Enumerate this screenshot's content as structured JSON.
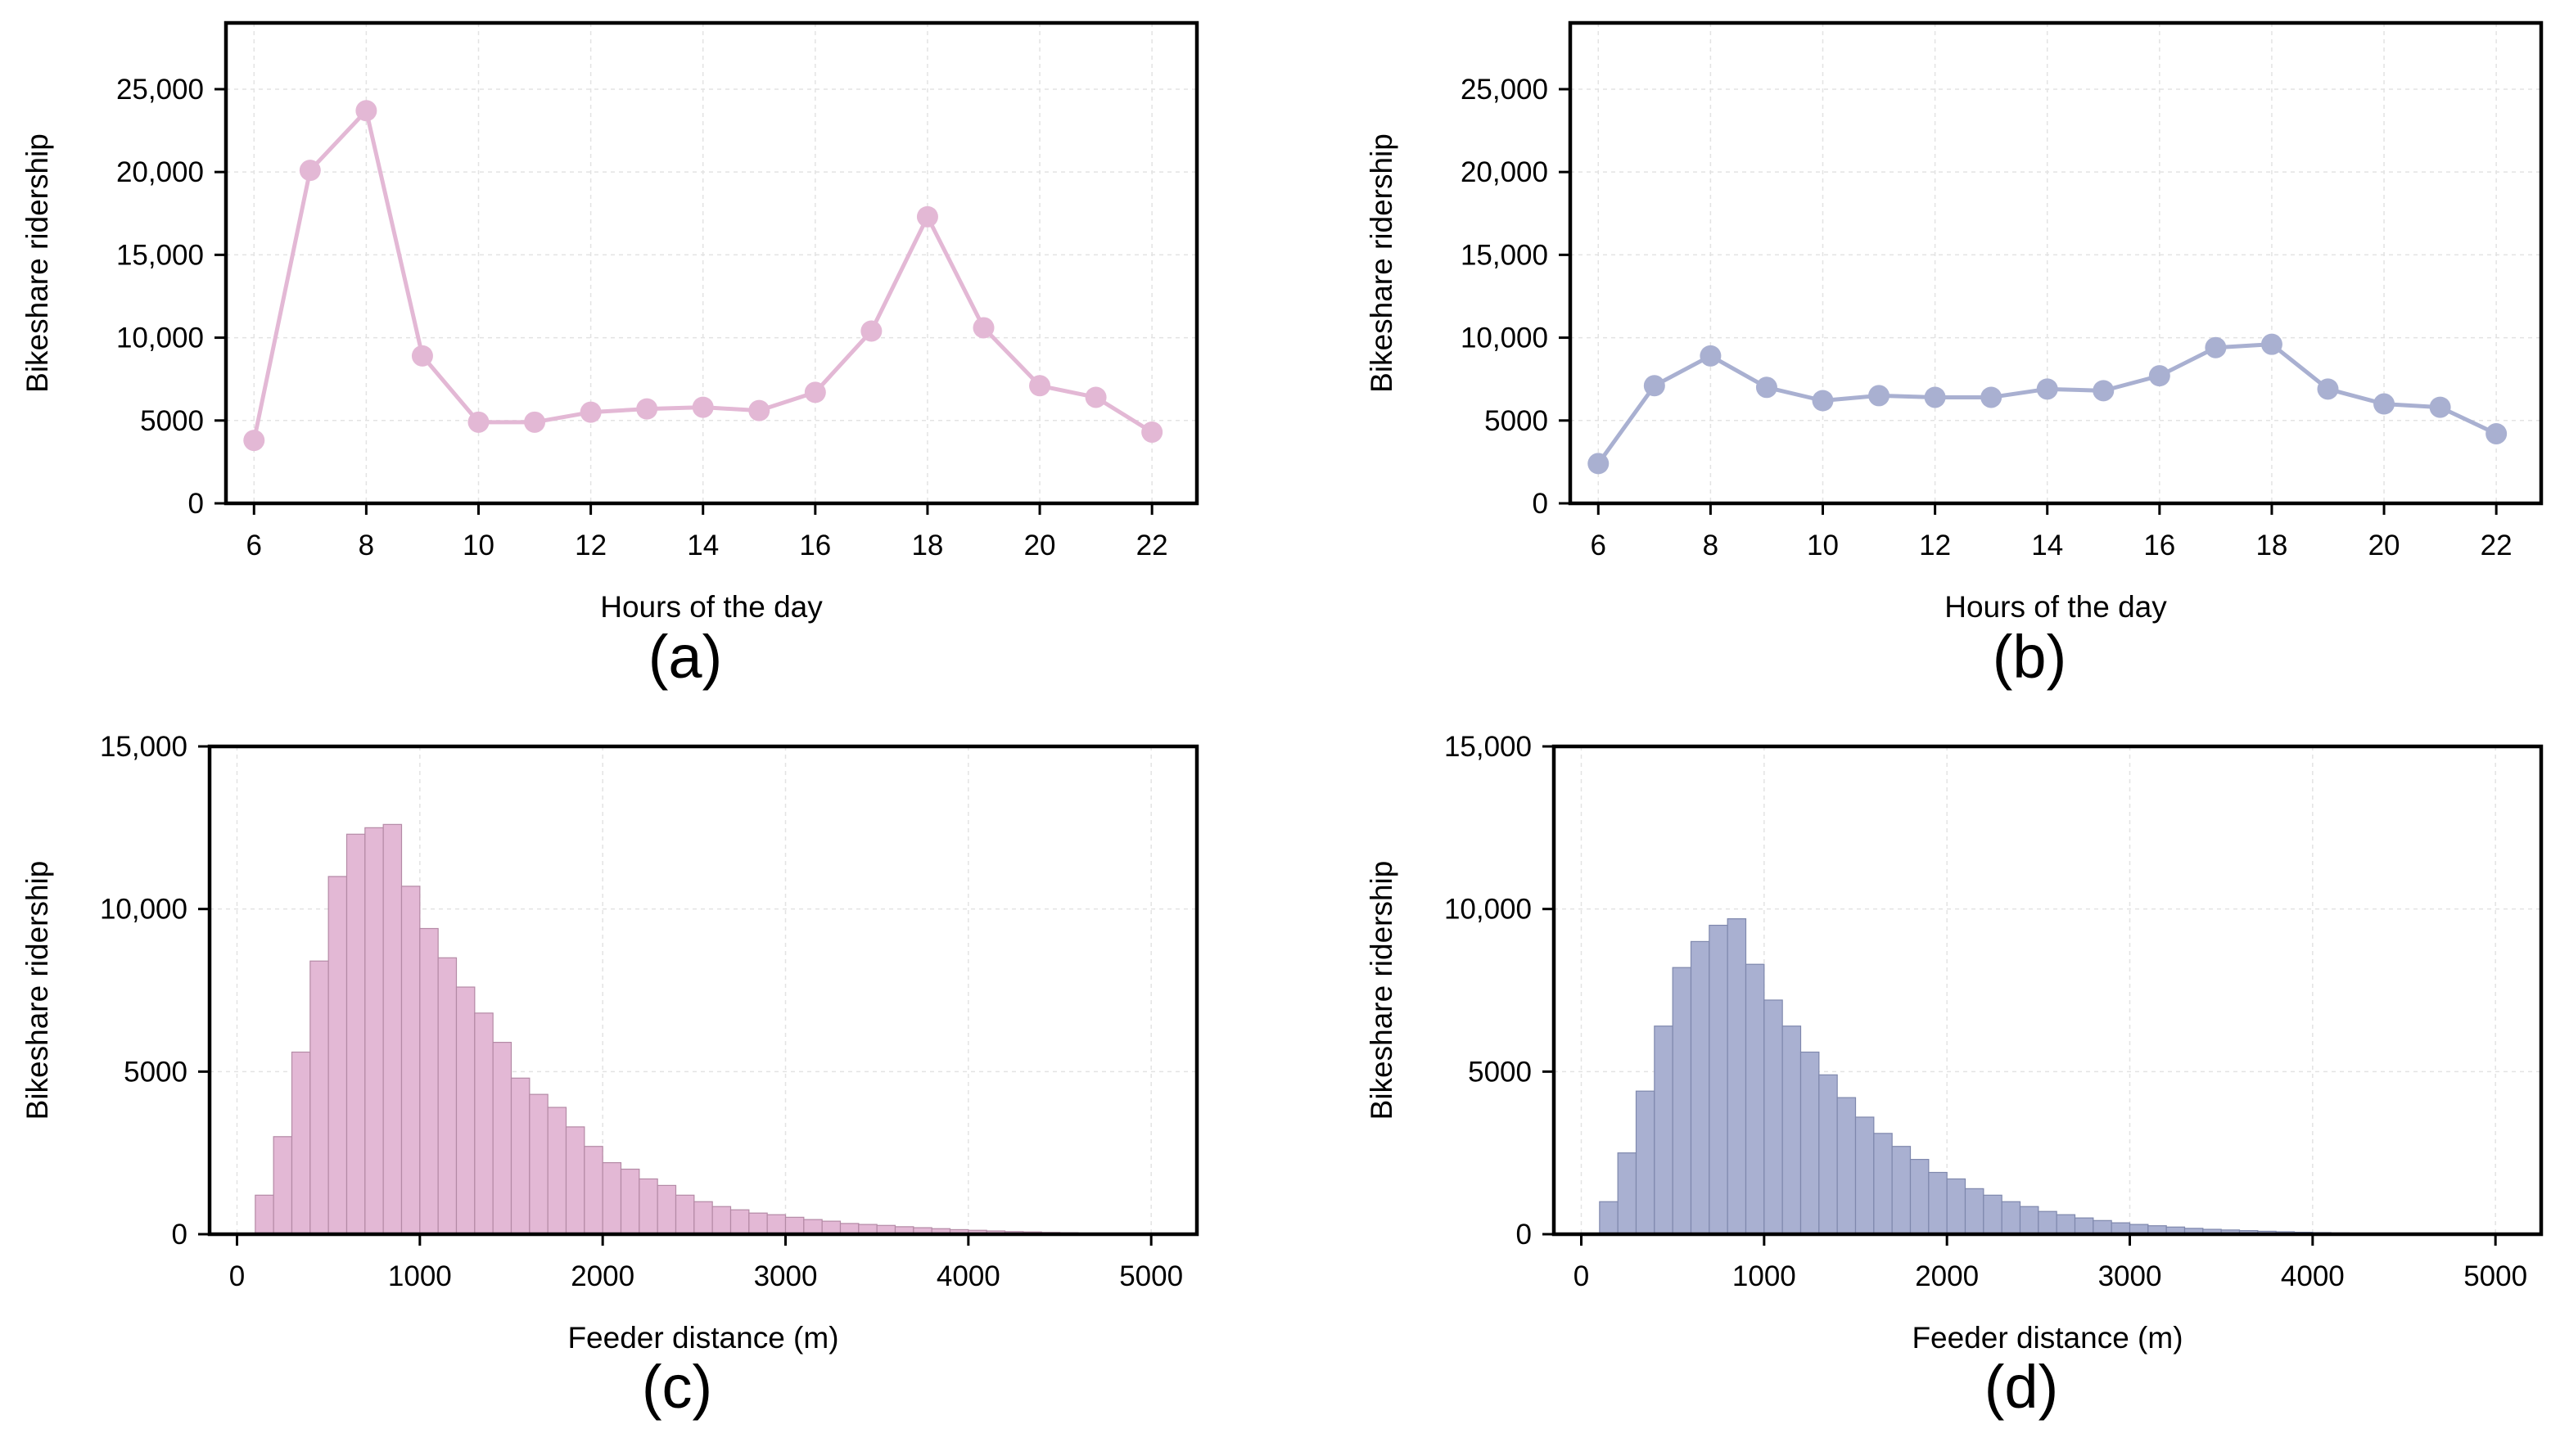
{
  "colors": {
    "pink": "#e3b8d5",
    "pink_edge": "#b48aa6",
    "blue": "#a9b0d1",
    "blue_edge": "#7f88ad"
  },
  "chart_data": [
    {
      "type": "line",
      "panel": "(a)",
      "xlabel": "Hours of the day",
      "ylabel": "Bikeshare ridership",
      "xlim": [
        5.5,
        22.8
      ],
      "ylim": [
        0,
        25000
      ],
      "xticks": [
        6,
        8,
        10,
        12,
        14,
        16,
        18,
        20,
        22
      ],
      "yticks": [
        0,
        5000,
        10000,
        15000,
        20000,
        25000
      ],
      "ytick_labels": [
        "0",
        "5000",
        "10,000",
        "15,000",
        "20,000",
        "25,000"
      ],
      "grid": true,
      "color": "#e3b8d5",
      "x": [
        6,
        7,
        8,
        9,
        10,
        11,
        12,
        13,
        14,
        15,
        16,
        17,
        18,
        19,
        20,
        21,
        22
      ],
      "y": [
        3800,
        20100,
        23700,
        8900,
        4900,
        4900,
        5500,
        5700,
        5800,
        5600,
        6700,
        10400,
        17300,
        10600,
        7100,
        6400,
        4300
      ]
    },
    {
      "type": "line",
      "panel": "(b)",
      "xlabel": "Hours of the day",
      "ylabel": "Bikeshare ridership",
      "xlim": [
        5.5,
        22.8
      ],
      "ylim": [
        0,
        25000
      ],
      "xticks": [
        6,
        8,
        10,
        12,
        14,
        16,
        18,
        20,
        22
      ],
      "yticks": [
        0,
        5000,
        10000,
        15000,
        20000,
        25000
      ],
      "ytick_labels": [
        "0",
        "5000",
        "10,000",
        "15,000",
        "20,000",
        "25,000"
      ],
      "grid": true,
      "color": "#a9b0d1",
      "x": [
        6,
        7,
        8,
        9,
        10,
        11,
        12,
        13,
        14,
        15,
        16,
        17,
        18,
        19,
        20,
        21,
        22
      ],
      "y": [
        2400,
        7100,
        8900,
        7000,
        6200,
        6500,
        6400,
        6400,
        6900,
        6800,
        7700,
        9400,
        9600,
        6900,
        6000,
        5800,
        4200
      ]
    },
    {
      "type": "bar",
      "panel": "(c)",
      "xlabel": "Feeder distance (m)",
      "ylabel": "Bikeshare ridership",
      "xlim": [
        -150,
        5250
      ],
      "ylim": [
        0,
        15000
      ],
      "xticks": [
        0,
        1000,
        2000,
        3000,
        4000,
        5000
      ],
      "yticks": [
        0,
        5000,
        10000,
        15000
      ],
      "ytick_labels": [
        "0",
        "5000",
        "10,000",
        "15,000"
      ],
      "grid": true,
      "color": "#e3b8d5",
      "bin_start": 100,
      "bin_width": 100,
      "values": [
        1200,
        3000,
        5600,
        8400,
        11000,
        12300,
        12500,
        12600,
        10700,
        9400,
        8500,
        7600,
        6800,
        5900,
        4800,
        4300,
        3900,
        3300,
        2700,
        2200,
        2000,
        1700,
        1500,
        1200,
        1000,
        850,
        750,
        650,
        600,
        520,
        450,
        400,
        330,
        300,
        270,
        230,
        200,
        170,
        140,
        120,
        100,
        80,
        70,
        55,
        45,
        35,
        30,
        20,
        15,
        10
      ]
    },
    {
      "type": "bar",
      "panel": "(d)",
      "xlabel": "Feeder distance (m)",
      "ylabel": "Bikeshare ridership",
      "xlim": [
        -150,
        5250
      ],
      "ylim": [
        0,
        15000
      ],
      "xticks": [
        0,
        1000,
        2000,
        3000,
        4000,
        5000
      ],
      "yticks": [
        0,
        5000,
        10000,
        15000
      ],
      "ytick_labels": [
        "0",
        "5000",
        "10,000",
        "15,000"
      ],
      "grid": true,
      "color": "#a9b0d1",
      "bin_start": 100,
      "bin_width": 100,
      "values": [
        1000,
        2500,
        4400,
        6400,
        8200,
        9000,
        9500,
        9700,
        8300,
        7200,
        6400,
        5600,
        4900,
        4200,
        3600,
        3100,
        2700,
        2300,
        1900,
        1700,
        1400,
        1200,
        1000,
        850,
        700,
        600,
        500,
        420,
        350,
        300,
        260,
        220,
        180,
        150,
        130,
        110,
        90,
        75,
        60,
        50,
        40,
        30,
        25,
        20,
        15,
        10,
        8,
        6,
        4,
        3
      ]
    }
  ]
}
